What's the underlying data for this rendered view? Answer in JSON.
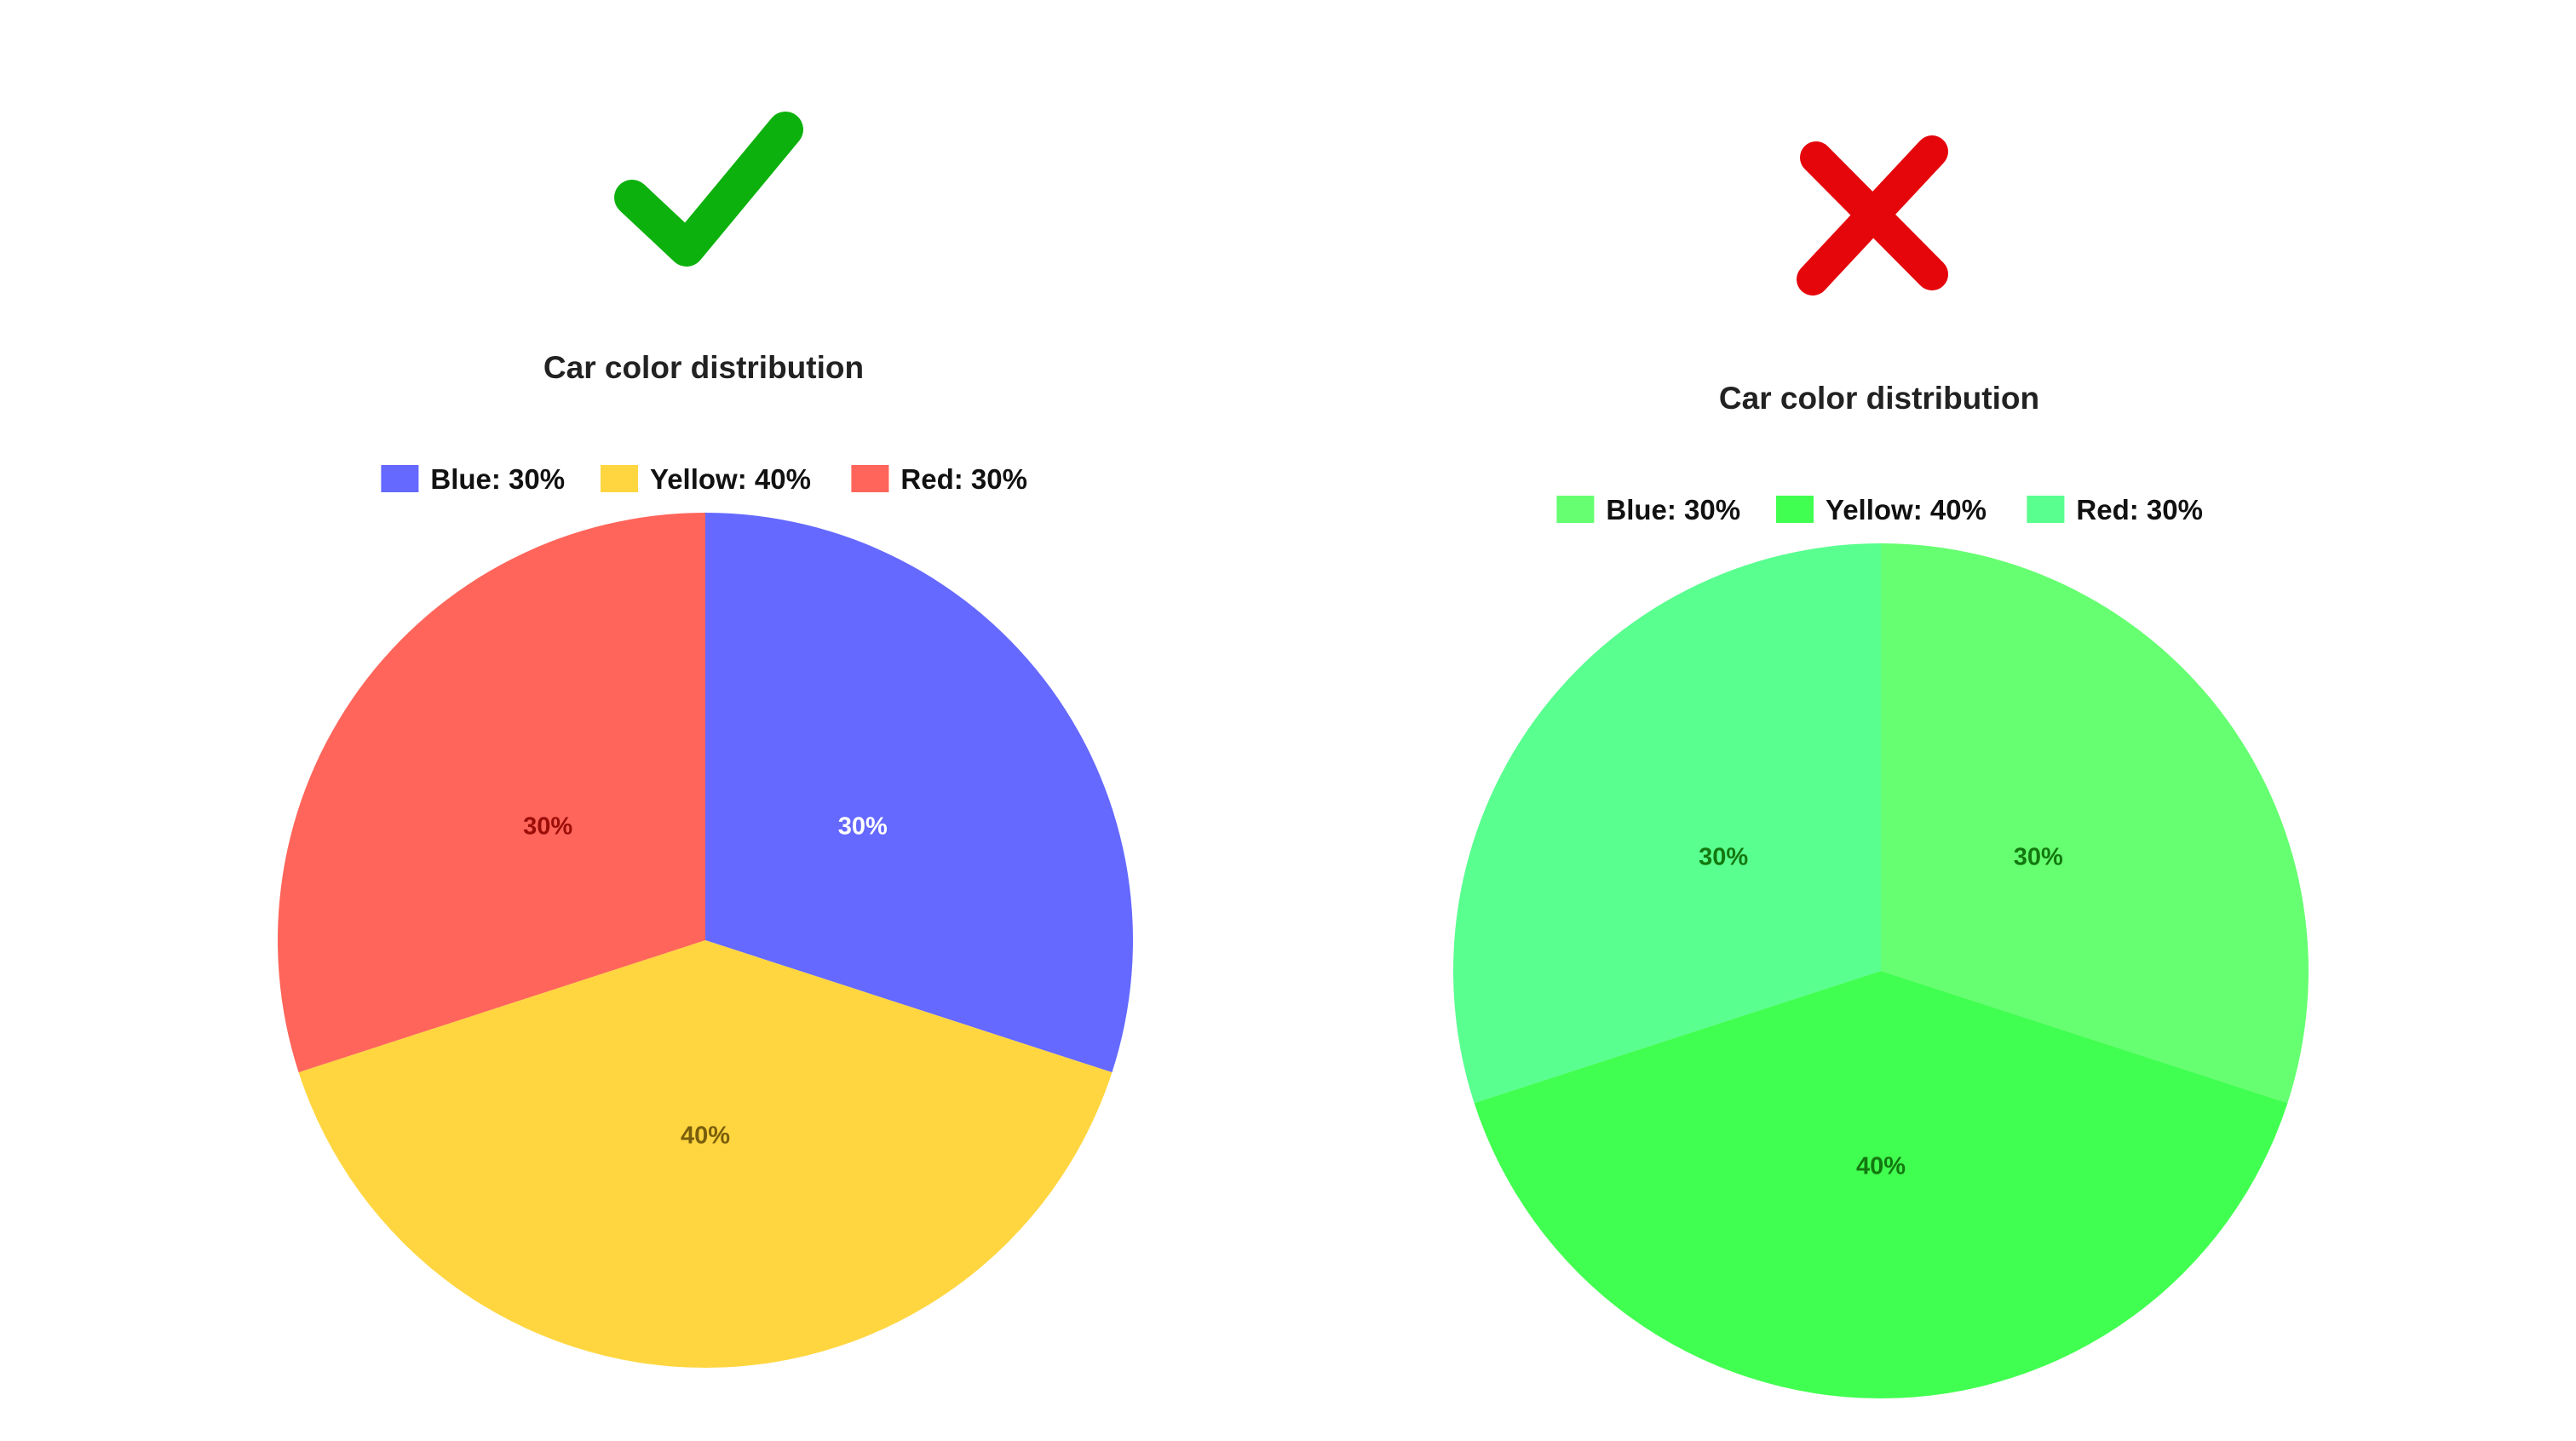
{
  "panels": [
    {
      "verdict_icon": "check-mark-icon",
      "verdict_color": "#0db10d",
      "chart_data": {
        "type": "pie",
        "title": "Car color distribution",
        "legend_position": "top",
        "slices": [
          {
            "name": "Blue",
            "value": 30,
            "legend_label": "Blue: 30%",
            "data_label": "30%",
            "color": "#6569ff",
            "label_color": "#ffffff"
          },
          {
            "name": "Yellow",
            "value": 40,
            "legend_label": "Yellow: 40%",
            "data_label": "40%",
            "color": "#ffd640",
            "label_color": "#7a5e0c"
          },
          {
            "name": "Red",
            "value": 30,
            "legend_label": "Red: 30%",
            "data_label": "30%",
            "color": "#ff655a",
            "label_color": "#9b0d08"
          }
        ]
      }
    },
    {
      "verdict_icon": "cross-mark-icon",
      "verdict_color": "#e5060b",
      "chart_data": {
        "type": "pie",
        "title": "Car color distribution",
        "legend_position": "top",
        "slices": [
          {
            "name": "Blue",
            "value": 30,
            "legend_label": "Blue: 30%",
            "data_label": "30%",
            "color": "#66ff71",
            "label_color": "#13780f"
          },
          {
            "name": "Yellow",
            "value": 40,
            "legend_label": "Yellow: 40%",
            "data_label": "40%",
            "color": "#41ff50",
            "label_color": "#13780f"
          },
          {
            "name": "Red",
            "value": 30,
            "legend_label": "Red: 30%",
            "data_label": "30%",
            "color": "#59ff8f",
            "label_color": "#13780f"
          }
        ]
      }
    }
  ]
}
